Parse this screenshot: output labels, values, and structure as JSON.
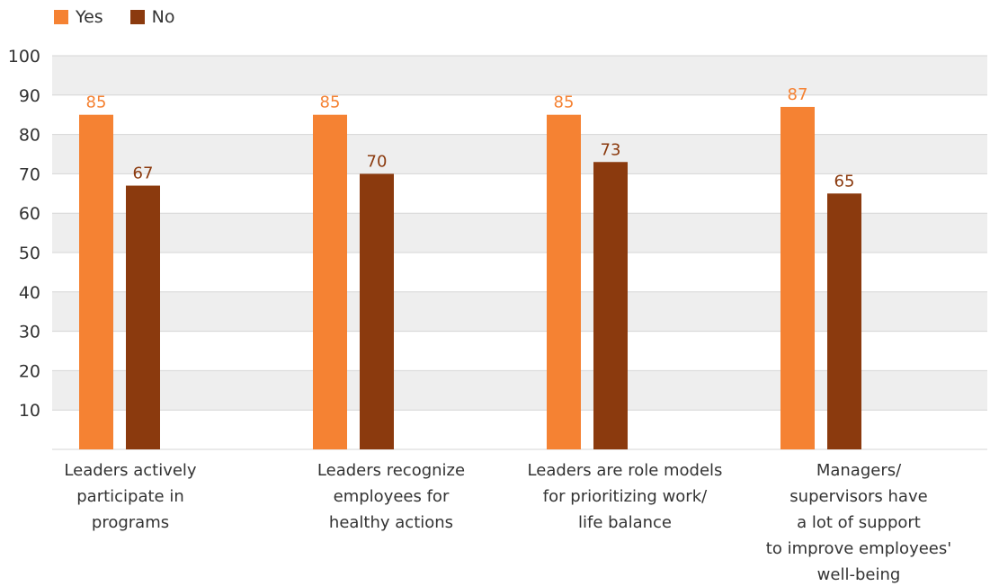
{
  "chart_data": {
    "type": "bar",
    "categories": [
      [
        "Leaders actively",
        "participate in",
        "programs"
      ],
      [
        "Leaders recognize",
        "employees for",
        "healthy actions"
      ],
      [
        "Leaders are role models",
        "for prioritizing work/",
        "life balance"
      ],
      [
        "Managers/",
        "supervisors have",
        "a lot of support",
        "to improve employees'",
        "well-being"
      ]
    ],
    "series": [
      {
        "name": "Yes",
        "color": "#F58233",
        "values": [
          85,
          85,
          85,
          87
        ]
      },
      {
        "name": "No",
        "color": "#8B3A0E",
        "values": [
          67,
          70,
          73,
          65
        ]
      }
    ],
    "ylim": [
      0,
      100
    ],
    "yticks": [
      10,
      20,
      30,
      40,
      50,
      60,
      70,
      80,
      90,
      100
    ],
    "grid": true,
    "legend": "top-left"
  }
}
